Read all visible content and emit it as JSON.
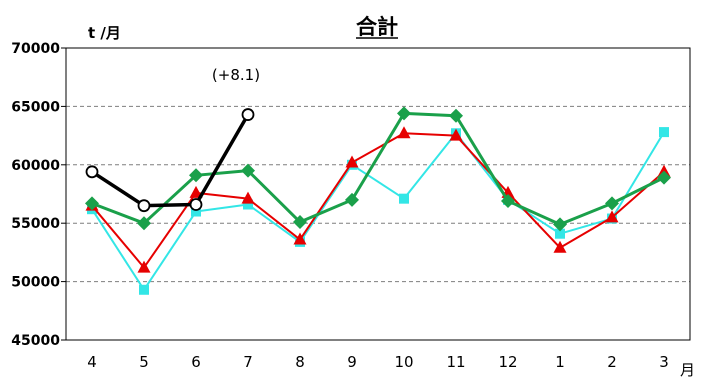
{
  "chart_data": {
    "type": "line",
    "title": "合計",
    "ylabel": "t /月",
    "xlabel": "月",
    "ylim": [
      45000,
      70000
    ],
    "yticks": [
      45000,
      50000,
      55000,
      60000,
      65000,
      70000
    ],
    "grid": true,
    "legend": "none",
    "categories": [
      "4",
      "5",
      "6",
      "7",
      "8",
      "9",
      "10",
      "11",
      "12",
      "1",
      "2",
      "3"
    ],
    "series": [
      {
        "color": "#33e6e6",
        "marker": "square",
        "values": [
          56200,
          49300,
          56000,
          56600,
          53400,
          60000,
          57100,
          62700,
          57000,
          54100,
          55400,
          62800
        ]
      },
      {
        "color": "#e60000",
        "marker": "triangle",
        "values": [
          56500,
          51200,
          57600,
          57100,
          53600,
          60200,
          62700,
          62500,
          57600,
          52900,
          55500,
          59400
        ]
      },
      {
        "color": "#1aa04a",
        "marker": "diamond",
        "values": [
          56700,
          55000,
          59100,
          59500,
          55100,
          57000,
          64400,
          64200,
          56900,
          54900,
          56700,
          58900
        ]
      },
      {
        "color": "#000000",
        "marker": "circle",
        "values": [
          59400,
          56500,
          56600,
          64300,
          null,
          null,
          null,
          null,
          null,
          null,
          null,
          null
        ]
      }
    ],
    "annotations": [
      {
        "text": "(+8.1)",
        "category": "7"
      }
    ]
  }
}
